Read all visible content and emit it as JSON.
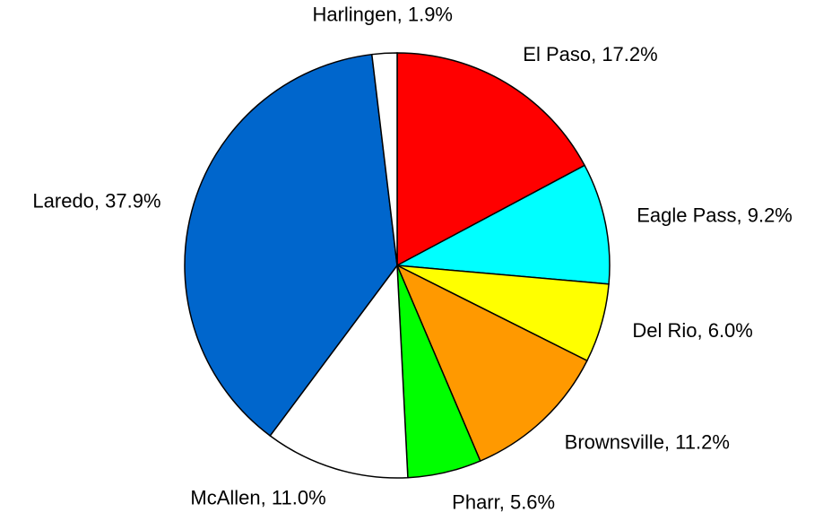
{
  "chart_data": {
    "type": "pie",
    "values": [
      17.2,
      9.2,
      6.0,
      11.2,
      5.6,
      11.0,
      37.9,
      1.9
    ],
    "value_labels": [
      "El Paso, 17.2%",
      "Eagle Pass, 9.2%",
      "Del Rio, 6.0%",
      "Brownsville, 11.2%",
      "Pharr, 5.6%",
      "McAllen, 11.0%",
      "Laredo, 37.9%",
      "Harlingen, 1.9%"
    ],
    "colors": [
      "#ff0000",
      "#00ffff",
      "#ffff00",
      "#ff9900",
      "#00ff00",
      "#ffffff",
      "#0066cc",
      "#ffffff"
    ]
  }
}
